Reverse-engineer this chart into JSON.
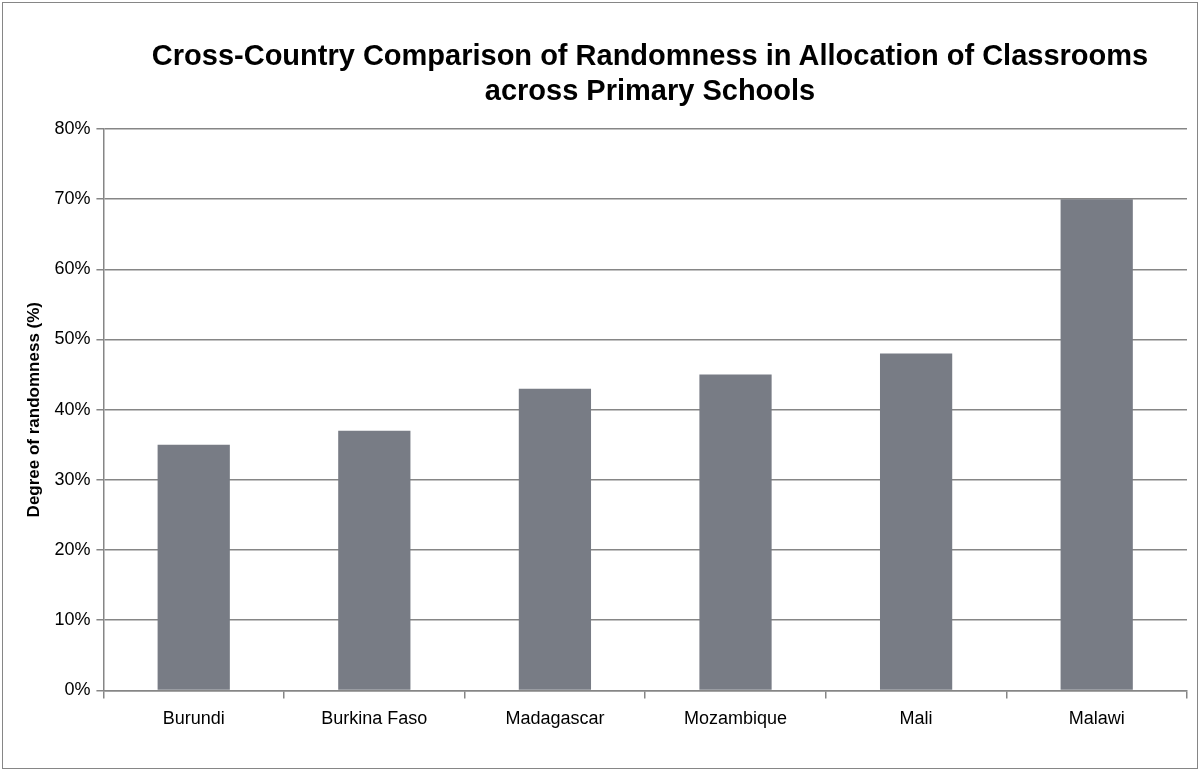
{
  "chart_data": {
    "type": "bar",
    "title": "Cross-Country Comparison of Randomness in Allocation of Classrooms across Primary Schools",
    "ylabel": "Degree of randomness (%)",
    "categories": [
      "Burundi",
      "Burkina Faso",
      "Madagascar",
      "Mozambique",
      "Mali",
      "Malawi"
    ],
    "values": [
      35,
      37,
      43,
      45,
      48,
      70
    ],
    "color": "#787c85",
    "ylim": [
      0,
      80
    ],
    "yticks": [
      {
        "value": 0,
        "label": "0%"
      },
      {
        "value": 10,
        "label": "10%"
      },
      {
        "value": 20,
        "label": "20%"
      },
      {
        "value": 30,
        "label": "30%"
      },
      {
        "value": 40,
        "label": "40%"
      },
      {
        "value": 50,
        "label": "50%"
      },
      {
        "value": 60,
        "label": "60%"
      },
      {
        "value": 70,
        "label": "70%"
      },
      {
        "value": 80,
        "label": "80%"
      }
    ],
    "grid": "y",
    "legend": false
  }
}
